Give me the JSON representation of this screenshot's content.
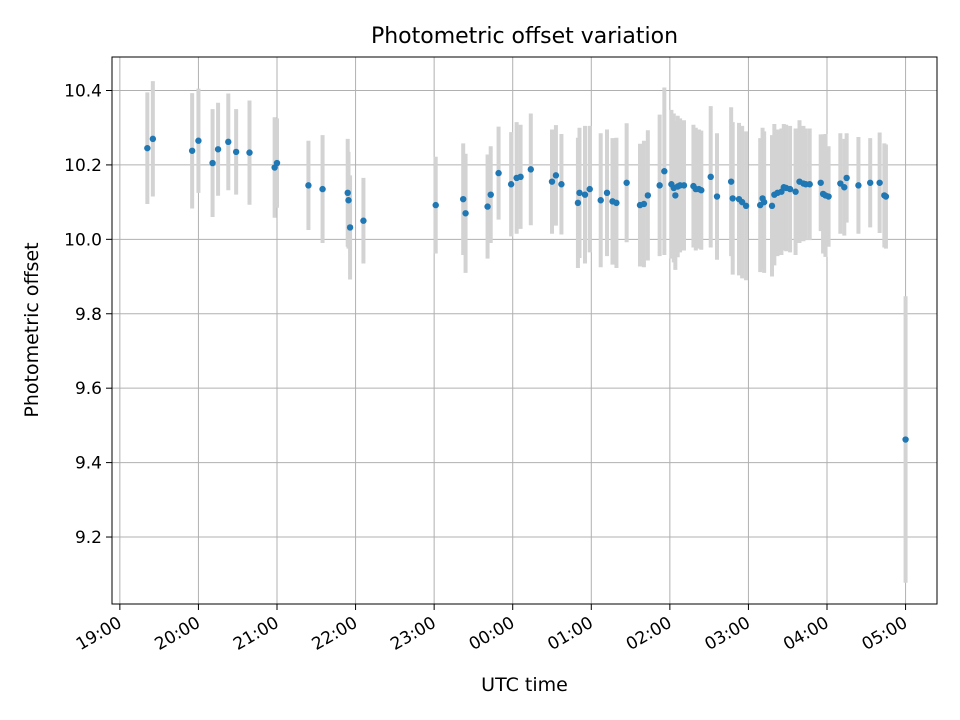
{
  "chart_data": {
    "type": "scatter",
    "title": "Photometric offset variation",
    "xlabel": "UTC time",
    "ylabel": "Photometric offset",
    "grid": true,
    "x_tick_labels": [
      "19:00",
      "20:00",
      "21:00",
      "22:00",
      "23:00",
      "00:00",
      "01:00",
      "02:00",
      "03:00",
      "04:00",
      "05:00"
    ],
    "y_ticks": [
      "9.2",
      "9.4",
      "9.6",
      "9.8",
      "10.0",
      "10.2",
      "10.4"
    ],
    "xlim_hours": [
      18.9,
      29.4
    ],
    "ylim": [
      9.02,
      10.49
    ],
    "colors": {
      "points": "#1f77b4",
      "errorbars": "#d3d3d3",
      "grid": "#b0b0b0"
    },
    "series": [
      {
        "x_hours": [
          19.35,
          19.42,
          19.92,
          20.0,
          20.18,
          20.25,
          20.38,
          20.48,
          20.65,
          20.97,
          21.0,
          21.4,
          21.58,
          21.9,
          21.91,
          21.93,
          22.1,
          23.02,
          23.37,
          23.4,
          23.68,
          23.72,
          23.82,
          23.98,
          24.05,
          24.1,
          24.23,
          24.5,
          24.55,
          24.62,
          24.83,
          24.85,
          24.92,
          24.98,
          25.12,
          25.2,
          25.27,
          25.32,
          25.45,
          25.62,
          25.67,
          25.72,
          25.87,
          25.93,
          26.02,
          26.05,
          26.07,
          26.1,
          26.13,
          26.18,
          26.3,
          26.33,
          26.37,
          26.4,
          26.52,
          26.6,
          26.78,
          26.8,
          26.88,
          26.92,
          26.97,
          27.15,
          27.18,
          27.2,
          27.3,
          27.33,
          27.37,
          27.42,
          27.45,
          27.48,
          27.53,
          27.6,
          27.65,
          27.7,
          27.73,
          27.78,
          27.92,
          27.95,
          27.98,
          28.02,
          28.17,
          28.22,
          28.25,
          28.4,
          28.55,
          28.67,
          28.73,
          28.75,
          29.0
        ],
        "y": [
          10.245,
          10.27,
          10.238,
          10.265,
          10.205,
          10.242,
          10.262,
          10.235,
          10.233,
          10.193,
          10.205,
          10.145,
          10.135,
          10.125,
          10.105,
          10.032,
          10.05,
          10.092,
          10.108,
          10.07,
          10.088,
          10.12,
          10.178,
          10.148,
          10.165,
          10.168,
          10.188,
          10.155,
          10.172,
          10.148,
          10.098,
          10.125,
          10.12,
          10.135,
          10.105,
          10.125,
          10.102,
          10.098,
          10.152,
          10.092,
          10.095,
          10.118,
          10.145,
          10.183,
          10.148,
          10.138,
          10.118,
          10.142,
          10.145,
          10.145,
          10.143,
          10.135,
          10.135,
          10.132,
          10.168,
          10.115,
          10.155,
          10.11,
          10.108,
          10.1,
          10.09,
          10.092,
          10.11,
          10.1,
          10.09,
          10.12,
          10.125,
          10.128,
          10.14,
          10.138,
          10.135,
          10.128,
          10.155,
          10.15,
          10.148,
          10.148,
          10.152,
          10.122,
          10.118,
          10.115,
          10.15,
          10.14,
          10.165,
          10.145,
          10.152,
          10.152,
          10.118,
          10.115,
          9.462
        ],
        "err": [
          0.15,
          0.155,
          0.155,
          0.14,
          0.145,
          0.125,
          0.13,
          0.115,
          0.14,
          0.135,
          0.12,
          0.12,
          0.145,
          0.145,
          0.13,
          0.14,
          0.115,
          0.13,
          0.15,
          0.16,
          0.14,
          0.13,
          0.125,
          0.14,
          0.15,
          0.14,
          0.15,
          0.14,
          0.135,
          0.135,
          0.175,
          0.175,
          0.185,
          0.17,
          0.18,
          0.17,
          0.17,
          0.175,
          0.16,
          0.165,
          0.17,
          0.175,
          0.19,
          0.225,
          0.2,
          0.2,
          0.2,
          0.19,
          0.18,
          0.175,
          0.165,
          0.165,
          0.16,
          0.16,
          0.19,
          0.17,
          0.2,
          0.205,
          0.205,
          0.205,
          0.2,
          0.18,
          0.19,
          0.19,
          0.19,
          0.19,
          0.17,
          0.17,
          0.17,
          0.17,
          0.17,
          0.17,
          0.165,
          0.155,
          0.15,
          0.15,
          0.13,
          0.16,
          0.165,
          0.135,
          0.135,
          0.13,
          0.12,
          0.13,
          0.12,
          0.135,
          0.14,
          0.14,
          0.385
        ]
      }
    ]
  }
}
